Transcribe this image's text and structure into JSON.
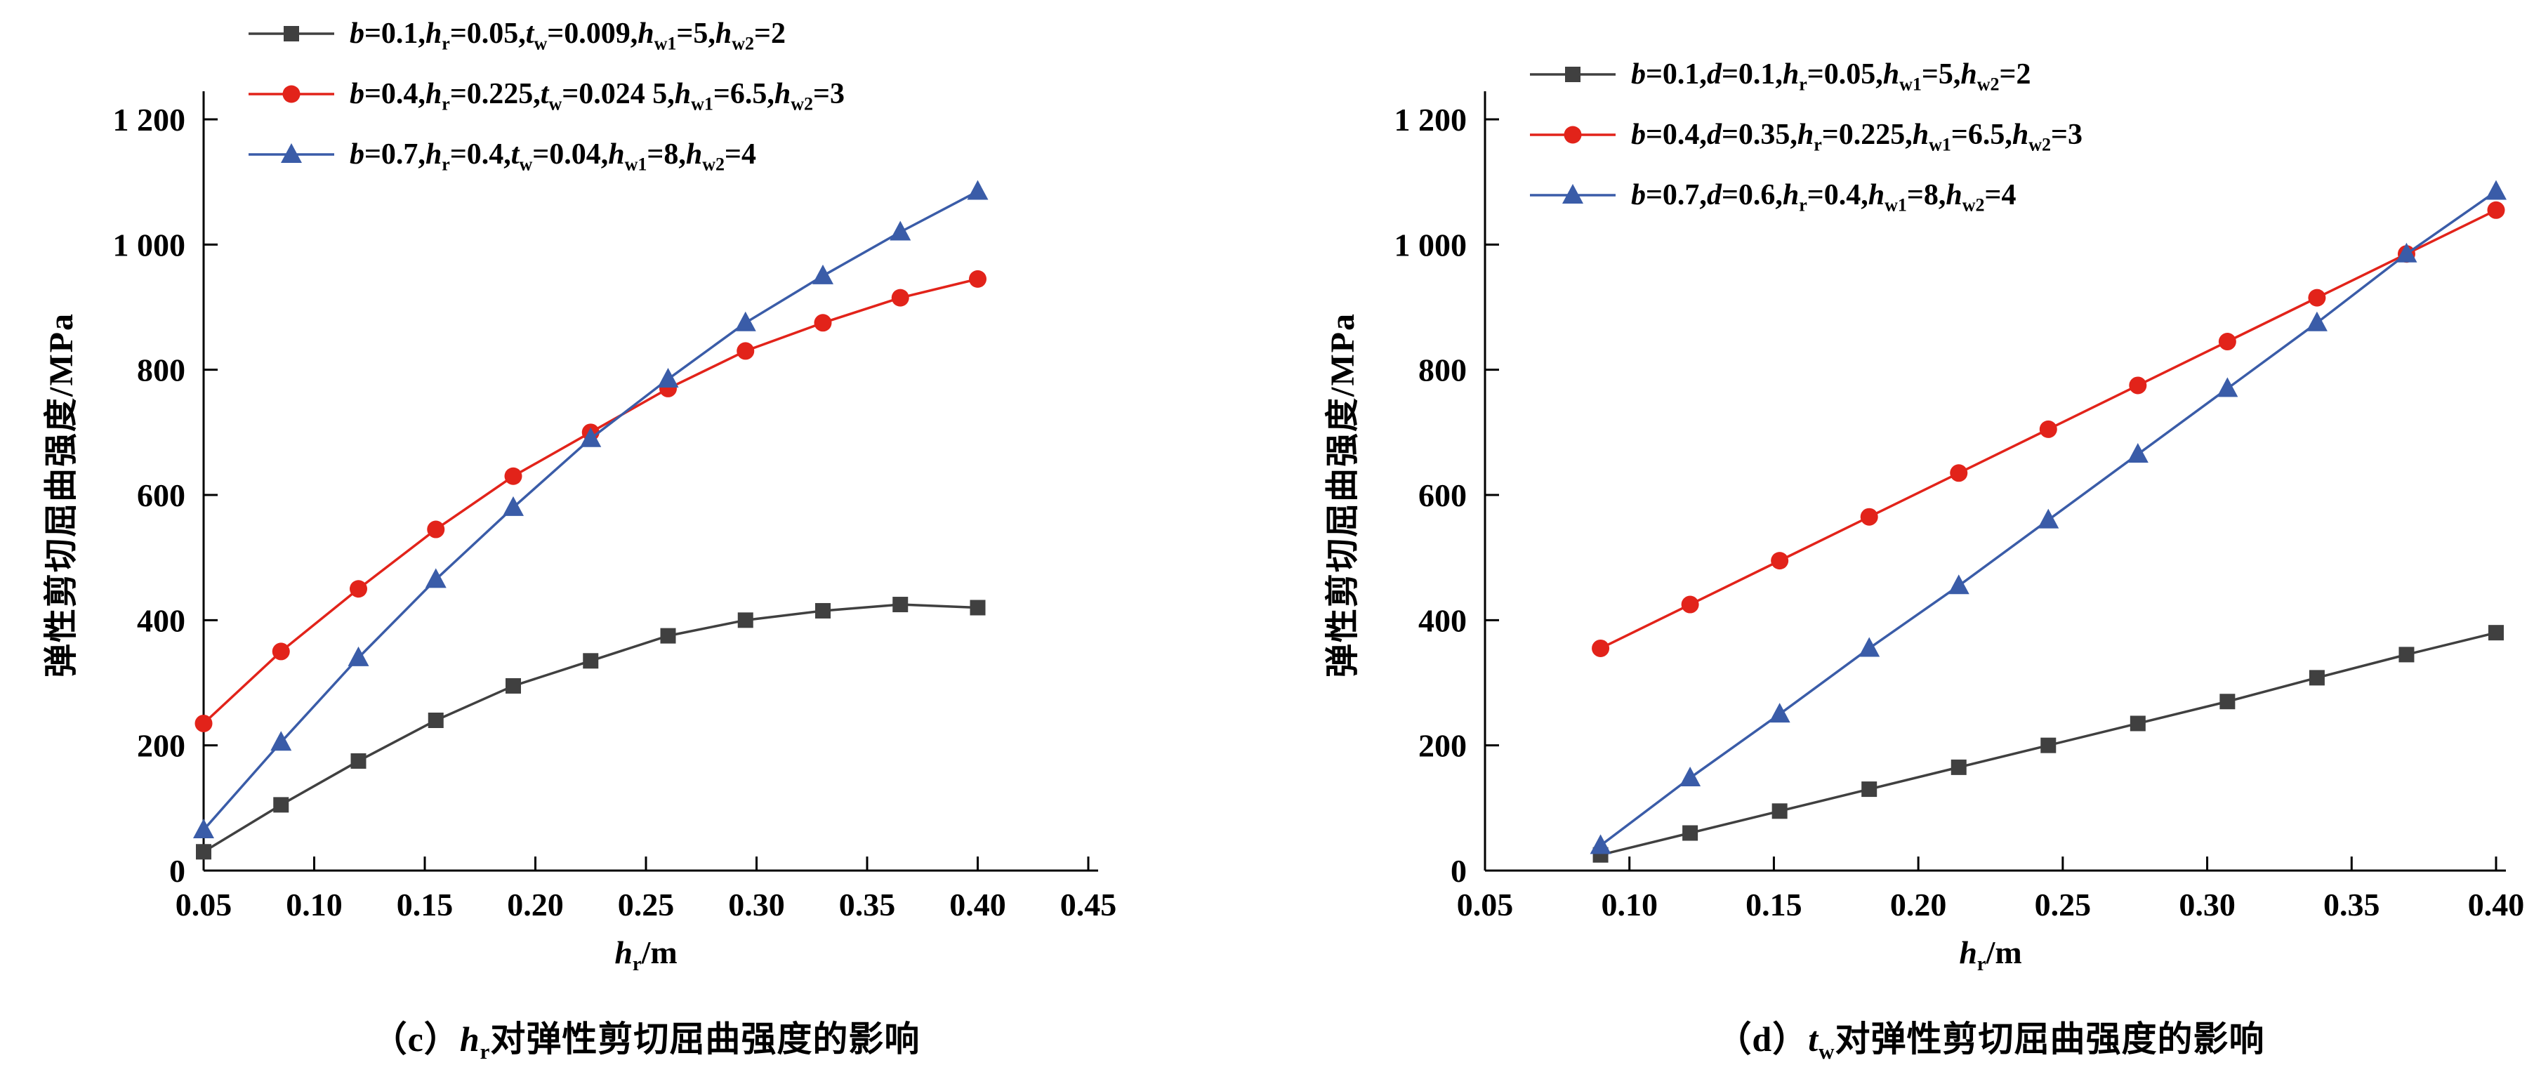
{
  "figure": {
    "background": "#ffffff",
    "axis_color": "#000000",
    "text_color": "#000000"
  },
  "chart_data": [
    {
      "type": "line",
      "panel": "c",
      "caption": "（c）{h_r}对弹性剪切屈曲强度的影响",
      "xlabel": "{h_r}/m",
      "ylabel": "弹性剪切屈曲强度/MPa",
      "xlim": [
        0.05,
        0.45
      ],
      "ylim": [
        0,
        1200
      ],
      "x_ticks": [
        0.05,
        0.1,
        0.15,
        0.2,
        0.25,
        0.3,
        0.35,
        0.4,
        0.45
      ],
      "x_tick_labels": [
        "0.05",
        "0.10",
        "0.15",
        "0.20",
        "0.25",
        "0.30",
        "0.35",
        "0.40",
        "0.45"
      ],
      "y_ticks": [
        0,
        200,
        400,
        600,
        800,
        1000,
        1200
      ],
      "y_tick_labels": [
        "0",
        "200",
        "400",
        "600",
        "800",
        "1 000",
        "1 200"
      ],
      "grid": false,
      "legend_position": "top-left",
      "series": [
        {
          "name": "{b}=0.1,{h_r}=0.05,{t_w}=0.009,{h_w1}=5,{h_w2}=2",
          "marker": "square",
          "color": "#404040",
          "x": [
            0.05,
            0.085,
            0.12,
            0.155,
            0.19,
            0.225,
            0.26,
            0.295,
            0.33,
            0.365,
            0.4
          ],
          "y": [
            30,
            105,
            175,
            240,
            295,
            335,
            375,
            400,
            415,
            425,
            420
          ]
        },
        {
          "name": "{b}=0.4,{h_r}=0.225,{t_w}=0.024 5,{h_w1}=6.5,{h_w2}=3",
          "marker": "circle",
          "color": "#e2231a",
          "x": [
            0.05,
            0.085,
            0.12,
            0.155,
            0.19,
            0.225,
            0.26,
            0.295,
            0.33,
            0.365,
            0.4
          ],
          "y": [
            235,
            350,
            450,
            545,
            630,
            700,
            770,
            830,
            875,
            915,
            945
          ]
        },
        {
          "name": "{b}=0.7,{h_r}=0.4,{t_w}=0.04,{h_w1}=8,{h_w2}=4",
          "marker": "triangle",
          "color": "#3a5ca8",
          "x": [
            0.05,
            0.085,
            0.12,
            0.155,
            0.19,
            0.225,
            0.26,
            0.295,
            0.33,
            0.365,
            0.4
          ],
          "y": [
            65,
            205,
            340,
            465,
            580,
            690,
            785,
            875,
            950,
            1020,
            1085
          ]
        }
      ]
    },
    {
      "type": "line",
      "panel": "d",
      "caption": "（d）{t_w}对弹性剪切屈曲强度的影响",
      "xlabel": "{h_r}/m",
      "ylabel": "弹性剪切屈曲强度/MPa",
      "xlim": [
        0.05,
        0.4
      ],
      "ylim": [
        0,
        1200
      ],
      "x_ticks": [
        0.05,
        0.1,
        0.15,
        0.2,
        0.25,
        0.3,
        0.35,
        0.4
      ],
      "x_tick_labels": [
        "0.05",
        "0.10",
        "0.15",
        "0.20",
        "0.25",
        "0.30",
        "0.35",
        "0.40"
      ],
      "y_ticks": [
        0,
        200,
        400,
        600,
        800,
        1000,
        1200
      ],
      "y_tick_labels": [
        "0",
        "200",
        "400",
        "600",
        "800",
        "1 000",
        "1 200"
      ],
      "grid": false,
      "legend_position": "top-left",
      "series": [
        {
          "name": "{b}=0.1,{d}=0.1,{h_r}=0.05,{h_w1}=5,{h_w2}=2",
          "marker": "square",
          "color": "#404040",
          "x": [
            0.09,
            0.121,
            0.152,
            0.183,
            0.214,
            0.245,
            0.276,
            0.307,
            0.338,
            0.369,
            0.4
          ],
          "y": [
            25,
            60,
            95,
            130,
            165,
            200,
            235,
            270,
            308,
            345,
            380
          ]
        },
        {
          "name": "{b}=0.4,{d}=0.35,{h_r}=0.225,{h_w1}=6.5,{h_w2}=3",
          "marker": "circle",
          "color": "#e2231a",
          "x": [
            0.09,
            0.121,
            0.152,
            0.183,
            0.214,
            0.245,
            0.276,
            0.307,
            0.338,
            0.369,
            0.4
          ],
          "y": [
            355,
            425,
            495,
            565,
            635,
            705,
            775,
            845,
            915,
            985,
            1055
          ]
        },
        {
          "name": "{b}=0.7,{d}=0.6,{h_r}=0.4,{h_w1}=8,{h_w2}=4",
          "marker": "triangle",
          "color": "#3a5ca8",
          "x": [
            0.09,
            0.121,
            0.152,
            0.183,
            0.214,
            0.245,
            0.276,
            0.307,
            0.338,
            0.369,
            0.4
          ],
          "y": [
            40,
            148,
            250,
            355,
            455,
            560,
            665,
            770,
            875,
            985,
            1085
          ]
        }
      ]
    }
  ]
}
